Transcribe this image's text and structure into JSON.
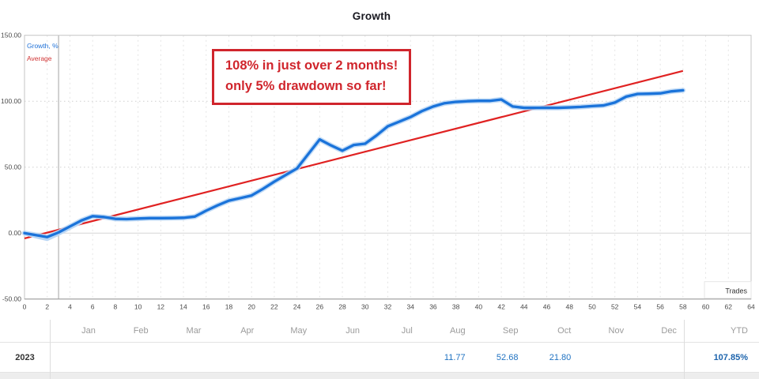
{
  "title": "Growth",
  "legend": {
    "growth_label": "Growth, %",
    "average_label": "Average"
  },
  "annotation": {
    "line1": "108% in just over 2 months!",
    "line2": "only 5% drawdown so far!"
  },
  "chart_data": {
    "type": "line",
    "title": "Growth",
    "xlabel": "Trades",
    "ylabel": "",
    "xlim": [
      0,
      64
    ],
    "ylim": [
      -50,
      150
    ],
    "x_ticks": [
      0,
      2,
      4,
      6,
      8,
      10,
      12,
      14,
      16,
      18,
      20,
      22,
      24,
      26,
      28,
      30,
      32,
      34,
      36,
      38,
      40,
      42,
      44,
      46,
      48,
      50,
      52,
      54,
      56,
      58,
      60,
      62,
      64
    ],
    "y_ticks": [
      150,
      100,
      50,
      0,
      -50
    ],
    "y_tick_labels": [
      "150.00",
      "100.00",
      "50.00",
      "0.00",
      "-50.00"
    ],
    "grid": "on",
    "legend_position": "top-left",
    "marker_x": 3,
    "series": [
      {
        "name": "Growth, %",
        "color": "#1a73da",
        "halo_color": "#b9d6f5",
        "x_start": 0,
        "x_step": 1,
        "values": [
          0,
          -1.5,
          -3,
          0.5,
          5,
          9.5,
          12.8,
          12.2,
          10.8,
          10.6,
          11,
          11.3,
          11.3,
          11.4,
          11.6,
          12.5,
          17,
          21,
          24.6,
          26.5,
          28.5,
          33.5,
          39,
          44,
          49,
          60,
          71,
          66.5,
          62.5,
          66.8,
          67.8,
          74,
          81,
          84.5,
          88,
          92.5,
          96,
          98.5,
          99.5,
          100,
          100.3,
          100.3,
          101.3,
          96,
          95,
          95,
          95,
          95,
          95.3,
          95.7,
          96.3,
          96.8,
          99,
          103.5,
          105.5,
          105.7,
          106,
          107.5,
          108.3
        ]
      },
      {
        "name": "Average",
        "color": "#e02222",
        "x": [
          0,
          58
        ],
        "values": [
          -4,
          123
        ]
      },
      {
        "name": "Growth shadow",
        "color": "#b9d6f5",
        "x": [
          0,
          1,
          2,
          3,
          4,
          5
        ],
        "values": [
          -0.5,
          -3,
          -5,
          -1,
          3.5,
          8
        ]
      }
    ]
  },
  "table": {
    "year": "2023",
    "months": [
      "Jan",
      "Feb",
      "Mar",
      "Apr",
      "May",
      "Jun",
      "Jul",
      "Aug",
      "Sep",
      "Oct",
      "Nov",
      "Dec"
    ],
    "ytd_label": "YTD",
    "values": [
      "",
      "",
      "",
      "",
      "",
      "",
      "",
      "11.77",
      "52.68",
      "21.80",
      "",
      ""
    ],
    "ytd_value": "107.85%"
  },
  "colors": {
    "growth_line": "#1a73da",
    "growth_halo": "#b9d6f5",
    "average_line": "#e02222",
    "annotation_red": "#d0252c",
    "table_value_blue": "#2173c2",
    "grid_gray": "#e4e4e4"
  }
}
